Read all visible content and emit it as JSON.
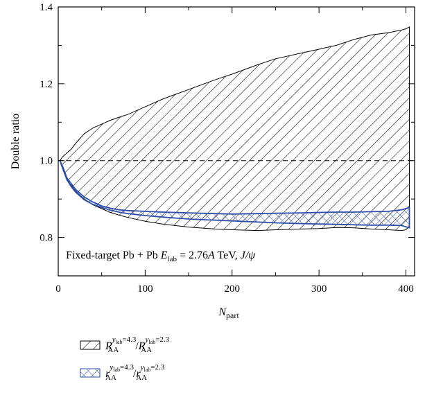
{
  "chart_data": {
    "type": "area",
    "title": "",
    "annotation": {
      "pre": "Fixed-target Pb + Pb ",
      "e": "E",
      "e_sub": "lab",
      "eq": " = 2.76",
      "a": "A",
      "tev": " TeV, ",
      "psi": "J/ψ"
    },
    "xlabel": {
      "main": "N",
      "sub": "part"
    },
    "ylabel": "Double ratio",
    "xlim": [
      0,
      410
    ],
    "ylim": [
      0.7,
      1.4
    ],
    "xticks": [
      0,
      100,
      200,
      300,
      400
    ],
    "xtick_labels": [
      "0",
      "100",
      "200",
      "300",
      "400"
    ],
    "yticks": [
      0.8,
      1.0,
      1.2,
      1.4
    ],
    "ytick_labels": [
      "0.8",
      "1.0",
      "1.2",
      "1.4"
    ],
    "reference_line": 1.0,
    "grid": false,
    "legend_position": "below",
    "series": [
      {
        "legend": {
          "base": "R",
          "base_sub": "AA",
          "sup_pre": "y",
          "sup_sub": "lab",
          "sup_post": "=4.3",
          "slash": "/",
          "den_base": "R",
          "den_sub": "AA",
          "den_sup_pre": "y",
          "den_sup_sub": "lab",
          "den_sup_post": "=2.3"
        },
        "pattern": "hatch",
        "color": "#000000",
        "x": [
          2,
          5,
          10,
          15,
          20,
          30,
          40,
          50,
          60,
          70,
          80,
          100,
          120,
          150,
          180,
          200,
          230,
          250,
          280,
          300,
          320,
          340,
          360,
          380,
          395,
          400,
          404
        ],
        "upper": [
          1.0,
          1.01,
          1.02,
          1.03,
          1.045,
          1.07,
          1.085,
          1.095,
          1.105,
          1.113,
          1.12,
          1.14,
          1.16,
          1.185,
          1.21,
          1.225,
          1.25,
          1.265,
          1.28,
          1.29,
          1.3,
          1.315,
          1.327,
          1.333,
          1.34,
          1.343,
          1.348
        ],
        "lower": [
          1.0,
          0.98,
          0.95,
          0.935,
          0.92,
          0.9,
          0.885,
          0.875,
          0.865,
          0.858,
          0.852,
          0.842,
          0.835,
          0.827,
          0.822,
          0.82,
          0.818,
          0.82,
          0.822,
          0.823,
          0.826,
          0.825,
          0.822,
          0.82,
          0.818,
          0.82,
          0.83
        ]
      },
      {
        "legend": {
          "base": "r",
          "base_sub": "AA",
          "sup_pre": "y",
          "sup_sub": "lab",
          "sup_post": "=4.3",
          "slash": "/",
          "den_base": "r",
          "den_sub": "AA",
          "den_sup_pre": "y",
          "den_sup_sub": "lab",
          "den_sup_post": "=2.3"
        },
        "pattern": "crosshatch",
        "color": "#2c4da8",
        "x": [
          2,
          5,
          10,
          15,
          20,
          30,
          40,
          50,
          60,
          70,
          80,
          100,
          120,
          150,
          180,
          200,
          230,
          250,
          280,
          300,
          320,
          340,
          360,
          380,
          395,
          404
        ],
        "upper": [
          1.0,
          0.985,
          0.955,
          0.94,
          0.925,
          0.905,
          0.892,
          0.882,
          0.876,
          0.872,
          0.87,
          0.868,
          0.866,
          0.864,
          0.862,
          0.861,
          0.862,
          0.863,
          0.864,
          0.865,
          0.866,
          0.866,
          0.867,
          0.868,
          0.872,
          0.878
        ],
        "lower": [
          1.0,
          0.98,
          0.95,
          0.932,
          0.918,
          0.898,
          0.886,
          0.878,
          0.871,
          0.866,
          0.862,
          0.857,
          0.853,
          0.848,
          0.845,
          0.843,
          0.84,
          0.838,
          0.836,
          0.835,
          0.834,
          0.833,
          0.832,
          0.832,
          0.831,
          0.825
        ]
      }
    ]
  }
}
